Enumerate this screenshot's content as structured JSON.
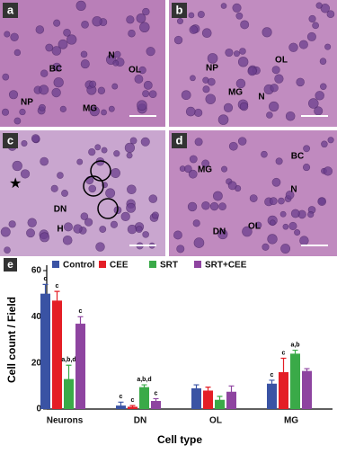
{
  "panels": [
    {
      "letter": "a",
      "labels": [
        "BC",
        "N",
        "OL",
        "NP",
        "MG"
      ]
    },
    {
      "letter": "b",
      "labels": [
        "NP",
        "MG",
        "OL",
        "N"
      ]
    },
    {
      "letter": "c",
      "labels": [
        "DN",
        "H"
      ]
    },
    {
      "letter": "d",
      "labels": [
        "MG",
        "BC",
        "N",
        "DN",
        "OL"
      ]
    }
  ],
  "chart_data": {
    "type": "bar",
    "panel_label": "e",
    "ylabel": "Cell count / Field",
    "xlabel": "Cell type",
    "categories": [
      "Neurons",
      "DN",
      "OL",
      "MG"
    ],
    "series": [
      {
        "name": "Control",
        "color": "#3a53a4",
        "values": [
          50,
          1.5,
          9,
          11
        ],
        "errors": [
          4,
          1.5,
          1.5,
          1.5
        ],
        "significance": [
          "c",
          "c",
          null,
          "c"
        ]
      },
      {
        "name": "CEE",
        "color": "#e41e26",
        "values": [
          47,
          1,
          8,
          16
        ],
        "errors": [
          4,
          0.5,
          1.5,
          6
        ],
        "significance": [
          "c",
          "c",
          null,
          "c"
        ]
      },
      {
        "name": "SRT",
        "color": "#3aaa48",
        "values": [
          13,
          9.5,
          4,
          24
        ],
        "errors": [
          6,
          1,
          1.5,
          1.5
        ],
        "significance": [
          "a,b,d",
          "a,b,d",
          null,
          "a,b"
        ]
      },
      {
        "name": "SRT+CEE",
        "color": "#8e44a0",
        "values": [
          37,
          3.5,
          7.5,
          16.5
        ],
        "errors": [
          3,
          1,
          2.5,
          1
        ],
        "significance": [
          "c",
          "c",
          null,
          null
        ]
      }
    ],
    "ylim": [
      0,
      60
    ],
    "yticks": [
      0,
      20,
      40,
      60
    ]
  }
}
